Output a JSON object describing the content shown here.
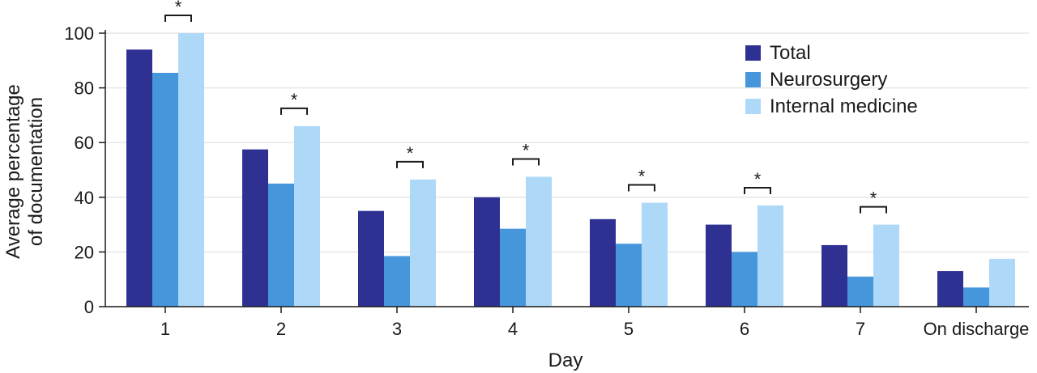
{
  "chart_data": {
    "type": "bar",
    "title": "",
    "xlabel": "Day",
    "ylabel_lines": [
      "Average percentage",
      "of documentation"
    ],
    "ylim": [
      0,
      100
    ],
    "yticks": [
      0,
      20,
      40,
      60,
      80,
      100
    ],
    "grid": true,
    "legend_position": "top-right",
    "categories": [
      "1",
      "2",
      "3",
      "4",
      "5",
      "6",
      "7",
      "On discharge"
    ],
    "series": [
      {
        "name": "Total",
        "color": "#2e3192",
        "values": [
          94,
          57.5,
          35,
          40,
          32,
          30,
          22.5,
          13
        ]
      },
      {
        "name": "Neurosurgery",
        "color": "#4696dc",
        "values": [
          85.5,
          45,
          18.5,
          28.5,
          23,
          20,
          11,
          7
        ]
      },
      {
        "name": "Internal medicine",
        "color": "#aed8f8",
        "values": [
          100,
          66,
          46.5,
          47.5,
          38,
          37,
          30,
          17.5
        ]
      }
    ],
    "significance": [
      {
        "category": "1",
        "label": "*"
      },
      {
        "category": "2",
        "label": "*"
      },
      {
        "category": "3",
        "label": "*"
      },
      {
        "category": "4",
        "label": "*"
      },
      {
        "category": "5",
        "label": "*"
      },
      {
        "category": "6",
        "label": "*"
      },
      {
        "category": "7",
        "label": "*"
      }
    ]
  }
}
